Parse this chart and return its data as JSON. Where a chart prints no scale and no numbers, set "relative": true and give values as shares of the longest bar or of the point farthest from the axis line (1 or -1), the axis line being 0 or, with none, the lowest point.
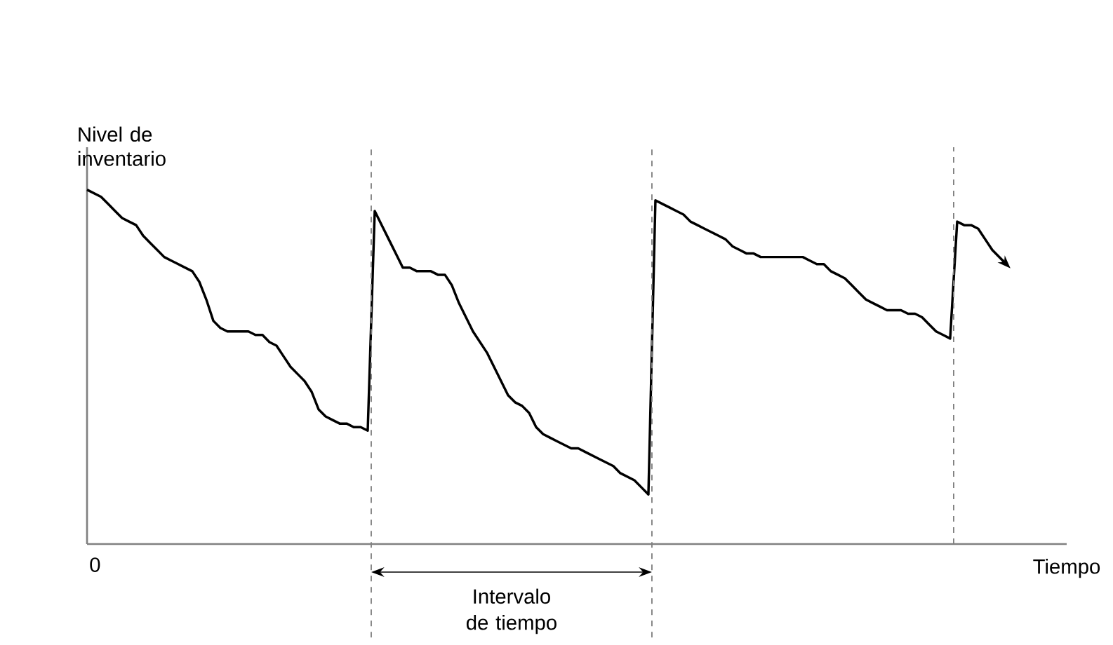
{
  "chart_data": {
    "type": "line",
    "relative": true,
    "xlabel": "Tiempo",
    "ylabel": "Nivel de inventario",
    "annotations": [
      "Intervalo de tiempo",
      "0"
    ],
    "categories": [
      null,
      null,
      null,
      null,
      null,
      null,
      null,
      null,
      null,
      null,
      null,
      null,
      null,
      null,
      null,
      null,
      null,
      null,
      null,
      null,
      null,
      null,
      null,
      null,
      null,
      null,
      null,
      null,
      null,
      null,
      null,
      null,
      null,
      null,
      null,
      null,
      null,
      null,
      null,
      null,
      null,
      null,
      null,
      null,
      null,
      null,
      null,
      null,
      null,
      null,
      null,
      null,
      null,
      null,
      null,
      null,
      null,
      null,
      null,
      null,
      null,
      null,
      null,
      null,
      null,
      null,
      null,
      null,
      null,
      null,
      null,
      null,
      null,
      null,
      null,
      null,
      null,
      null,
      null,
      null,
      null,
      null,
      null,
      null,
      null,
      null,
      null,
      null,
      null,
      null,
      null,
      null,
      null,
      null,
      null,
      null,
      null,
      null,
      null,
      null,
      null,
      null,
      null,
      null,
      null,
      null,
      null,
      null,
      null,
      null,
      null,
      null,
      null,
      null,
      null,
      null,
      null,
      null,
      null,
      null,
      null,
      null,
      null,
      null,
      null,
      null,
      null,
      null,
      null,
      null,
      null,
      null
    ],
    "series": [
      {
        "color": "#000000",
        "values": [
          1.0,
          0.99,
          0.98,
          0.96,
          0.94,
          0.92,
          0.91,
          0.9,
          0.87,
          0.85,
          0.83,
          0.81,
          0.8,
          0.79,
          0.78,
          0.77,
          0.74,
          0.69,
          0.63,
          0.61,
          0.6,
          0.6,
          0.6,
          0.6,
          0.59,
          0.59,
          0.57,
          0.56,
          0.53,
          0.5,
          0.48,
          0.46,
          0.43,
          0.38,
          0.36,
          0.35,
          0.34,
          0.34,
          0.33,
          0.33,
          0.32,
          0.94,
          0.9,
          0.86,
          0.82,
          0.78,
          0.78,
          0.77,
          0.77,
          0.77,
          0.76,
          0.76,
          0.73,
          0.68,
          0.64,
          0.6,
          0.57,
          0.54,
          0.5,
          0.46,
          0.42,
          0.4,
          0.39,
          0.37,
          0.33,
          0.31,
          0.3,
          0.29,
          0.28,
          0.27,
          0.27,
          0.26,
          0.25,
          0.24,
          0.23,
          0.22,
          0.2,
          0.19,
          0.18,
          0.16,
          0.14,
          0.97,
          0.96,
          0.95,
          0.94,
          0.93,
          0.91,
          0.9,
          0.89,
          0.88,
          0.87,
          0.86,
          0.84,
          0.83,
          0.82,
          0.82,
          0.81,
          0.81,
          0.81,
          0.81,
          0.81,
          0.81,
          0.81,
          0.8,
          0.79,
          0.79,
          0.77,
          0.76,
          0.75,
          0.73,
          0.71,
          0.69,
          0.68,
          0.67,
          0.66,
          0.66,
          0.66,
          0.65,
          0.65,
          0.64,
          0.62,
          0.6,
          0.59,
          0.58,
          0.91,
          0.9,
          0.9,
          0.89,
          0.86,
          0.83,
          0.81,
          0.79
        ]
      }
    ]
  }
}
